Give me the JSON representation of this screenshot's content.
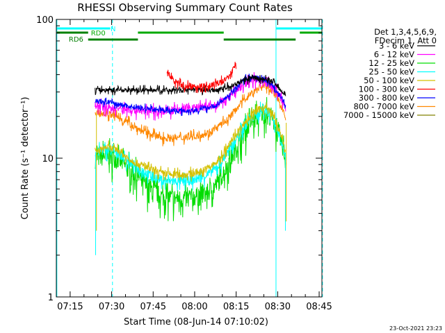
{
  "chart_data": {
    "type": "line",
    "title": "RHESSI Observing Summary Count Rates",
    "xlabel": "Start Time (08-Jun-14 07:10:02)",
    "ylabel": "Count Rate (s⁻¹ detector⁻¹)",
    "x_unit": "minutes after 07:10",
    "xlim": [
      0,
      96
    ],
    "ylim": [
      1,
      100
    ],
    "y_scale": "log",
    "grid": false,
    "legend_position": "right",
    "x_ticks": [
      {
        "v": 5,
        "label": "07:15"
      },
      {
        "v": 20,
        "label": "07:30"
      },
      {
        "v": 35,
        "label": "07:45"
      },
      {
        "v": 50,
        "label": "08:00"
      },
      {
        "v": 65,
        "label": "08:15"
      },
      {
        "v": 80,
        "label": "08:30"
      },
      {
        "v": 95,
        "label": "08:45"
      }
    ],
    "y_ticks": [
      {
        "v": 1,
        "label": "1"
      },
      {
        "v": 10,
        "label": "10"
      },
      {
        "v": 100,
        "label": "100"
      }
    ],
    "legend_header": [
      "Det 1,3,4,5,6,9,",
      "FDecim 1, Att 0"
    ],
    "series": [
      {
        "name": "3 - 6 keV",
        "color": "#000000",
        "noise": 0.04,
        "x": [
          14,
          20,
          30,
          40,
          50,
          58,
          63,
          67,
          71,
          75,
          78,
          80,
          82,
          83
        ],
        "y": [
          31,
          31,
          31,
          31,
          31,
          31,
          33,
          36,
          38,
          37,
          36,
          33,
          30,
          28
        ]
      },
      {
        "name": "6 - 12 keV",
        "color": "#ff00ff",
        "noise": 0.07,
        "x": [
          14,
          20,
          30,
          40,
          50,
          58,
          63,
          67,
          71,
          75,
          78,
          80,
          82,
          83
        ],
        "y": [
          24,
          23,
          22,
          22,
          23,
          24,
          28,
          33,
          37,
          36,
          33,
          30,
          25,
          22
        ]
      },
      {
        "name": "12 - 25 keV",
        "color": "#00dd00",
        "noise": 0.16,
        "x": [
          14,
          18,
          22,
          26,
          30,
          34,
          38,
          42,
          46,
          50,
          54,
          58,
          62,
          66,
          70,
          74,
          76,
          78,
          80,
          82,
          83
        ],
        "y": [
          10,
          10.5,
          10,
          8.5,
          7.2,
          6,
          5.3,
          5.2,
          5.1,
          5.3,
          5.5,
          6.5,
          9,
          13,
          18,
          21,
          21,
          20,
          15,
          12,
          9
        ]
      },
      {
        "name": "25 - 50 keV",
        "color": "#00ffff",
        "noise": 0.08,
        "x": [
          14,
          18,
          22,
          26,
          30,
          34,
          38,
          42,
          46,
          50,
          54,
          58,
          62,
          66,
          70,
          74,
          76,
          78,
          80,
          82,
          83
        ],
        "y": [
          11,
          11.5,
          11,
          9.5,
          8.5,
          7.5,
          7,
          6.8,
          6.8,
          7,
          7.5,
          8.5,
          11,
          15,
          19,
          22,
          22,
          20,
          16,
          12,
          10
        ]
      },
      {
        "name": "50 - 100 keV",
        "color": "#d4c000",
        "noise": 0.06,
        "x": [
          14,
          18,
          22,
          26,
          30,
          34,
          38,
          42,
          46,
          50,
          54,
          58,
          62,
          66,
          70,
          74,
          76,
          78,
          80,
          82,
          83
        ],
        "y": [
          11,
          12,
          11.5,
          10,
          9,
          8.3,
          7.8,
          7.6,
          7.6,
          7.8,
          8.3,
          9.3,
          12,
          16,
          20,
          23,
          23,
          21,
          17,
          13,
          10.5
        ]
      },
      {
        "name": "100 - 300 keV",
        "color": "#ff0000",
        "noise": 0.05,
        "x": [
          40,
          43,
          46,
          50,
          54,
          58,
          62,
          65
        ],
        "y": [
          41,
          36,
          33,
          33,
          33,
          34,
          38,
          47
        ]
      },
      {
        "name": "300 - 800 keV",
        "color": "#0000ff",
        "noise": 0.04,
        "x": [
          14,
          20,
          30,
          40,
          50,
          58,
          63,
          67,
          71,
          75,
          78,
          80,
          82,
          83
        ],
        "y": [
          26,
          25,
          23,
          22,
          22,
          24,
          29,
          36,
          39,
          37,
          34,
          30,
          26,
          23
        ]
      },
      {
        "name": "800 - 7000 keV",
        "color": "#ff8800",
        "noise": 0.06,
        "x": [
          14,
          18,
          22,
          26,
          30,
          34,
          38,
          42,
          46,
          50,
          54,
          58,
          62,
          66,
          70,
          74,
          76,
          78,
          80,
          82,
          83
        ],
        "y": [
          21,
          21,
          20,
          18,
          16,
          15,
          14,
          14,
          14,
          14.5,
          15,
          16.5,
          19,
          24,
          29,
          33,
          33,
          31,
          27,
          22,
          19
        ]
      },
      {
        "name": "7000 - 15000 keV",
        "color": "#808000",
        "noise": 0,
        "x": [],
        "y": []
      }
    ],
    "vlines": [
      {
        "x": 0.2,
        "color": "#00ffff",
        "dashed": false
      },
      {
        "x": 20.3,
        "color": "#00ffff",
        "dashed": true
      },
      {
        "x": 79.4,
        "color": "#00ffff",
        "dashed": false
      },
      {
        "x": 96.2,
        "color": "#00ffff",
        "dashed": true
      }
    ],
    "flag_bars": [
      {
        "label": "N",
        "color": "#00ffff",
        "lane": 0,
        "segments": [
          [
            0.2,
            19.5
          ],
          [
            79.4,
            95.9
          ]
        ]
      },
      {
        "label": "RD0",
        "color": "#00aa00",
        "lane": 1,
        "segments": [
          [
            29.5,
            60.5
          ],
          [
            88,
            95.9
          ]
        ]
      },
      {
        "label": "RD6",
        "color": "#008000",
        "lane": 1,
        "segments": [
          [
            0.2,
            11.5
          ]
        ]
      },
      {
        "label": "",
        "color": "#008000",
        "lane": 2,
        "segments": [
          [
            11.5,
            29.5
          ],
          [
            60.5,
            86.5
          ]
        ]
      }
    ],
    "flag_label_anchors": [
      {
        "label": "N",
        "x": 19.6
      },
      {
        "label": "RD0",
        "x": 12.5
      },
      {
        "label": "RD6",
        "x": 4.5
      }
    ]
  },
  "timestamp": "23-Oct-2021 23:23"
}
